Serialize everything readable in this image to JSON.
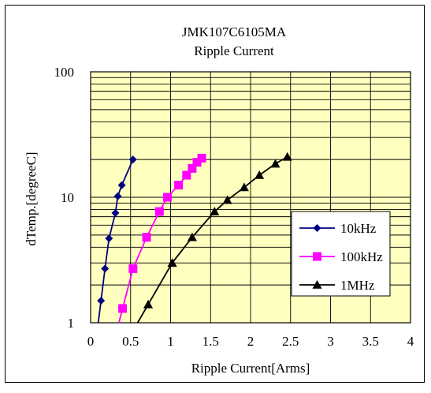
{
  "chart_data": {
    "type": "line",
    "title": "JMK107C6105MA",
    "subtitle": "Ripple Current",
    "xlabel": "Ripple Current[Arms]",
    "ylabel": "dTemp.[degreeC]",
    "xlim": [
      0,
      4
    ],
    "ylim": [
      1,
      100
    ],
    "y_scale": "log",
    "x_ticks": [
      "0",
      "0.5",
      "1",
      "1.5",
      "2",
      "2.5",
      "3",
      "3.5",
      "4"
    ],
    "y_ticks": [
      "1",
      "10",
      "100"
    ],
    "grid": true,
    "legend_position": "right",
    "background_color": "#ffffc0",
    "series": [
      {
        "name": "10kHz",
        "color": "#000080",
        "marker": "diamond",
        "x": [
          0.13,
          0.18,
          0.23,
          0.31,
          0.34,
          0.39,
          0.53
        ],
        "y": [
          1.5,
          2.7,
          4.7,
          7.5,
          10.2,
          12.5,
          20
        ]
      },
      {
        "name": "100kHz",
        "color": "#ff00ff",
        "marker": "square",
        "x": [
          0.4,
          0.53,
          0.7,
          0.86,
          0.96,
          1.1,
          1.2,
          1.27,
          1.33,
          1.39
        ],
        "y": [
          1.3,
          2.7,
          4.8,
          7.7,
          10,
          12.5,
          15,
          17,
          19,
          20.5
        ]
      },
      {
        "name": "1MHz",
        "color": "#000000",
        "marker": "triangle",
        "x": [
          0.72,
          1.02,
          1.27,
          1.55,
          1.71,
          1.92,
          2.11,
          2.31,
          2.46
        ],
        "y": [
          1.4,
          3,
          4.8,
          7.7,
          9.5,
          12,
          15,
          18.5,
          21
        ]
      }
    ]
  }
}
